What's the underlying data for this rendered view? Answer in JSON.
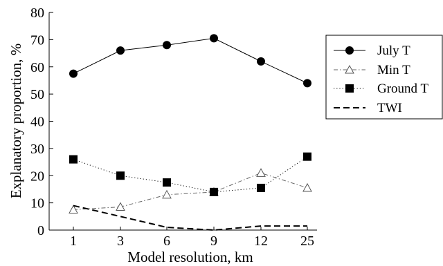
{
  "chart_data": {
    "type": "line",
    "xlabel": "Model resolution, km",
    "ylabel": "Explanatory proportion, %",
    "categories": [
      "1",
      "3",
      "6",
      "9",
      "12",
      "25"
    ],
    "ylim": [
      0,
      80
    ],
    "yticks": [
      0,
      10,
      20,
      30,
      40,
      50,
      60,
      70,
      80
    ],
    "grid": false,
    "legend_position": "right",
    "series": [
      {
        "name": "July T",
        "marker": "circle-filled",
        "line": "solid",
        "values": [
          57.5,
          66,
          68,
          70.5,
          62,
          54
        ]
      },
      {
        "name": "Min T",
        "marker": "triangle-open",
        "line": "dash-dot",
        "values": [
          7.5,
          8.5,
          13,
          14,
          21,
          15.5
        ]
      },
      {
        "name": "Ground T",
        "marker": "square-filled",
        "line": "dotted",
        "values": [
          26,
          20,
          17.5,
          14,
          15.5,
          27
        ]
      },
      {
        "name": "TWI",
        "marker": "none",
        "line": "dashed",
        "values": [
          9,
          5,
          1,
          0,
          1.5,
          1.5
        ]
      }
    ]
  }
}
